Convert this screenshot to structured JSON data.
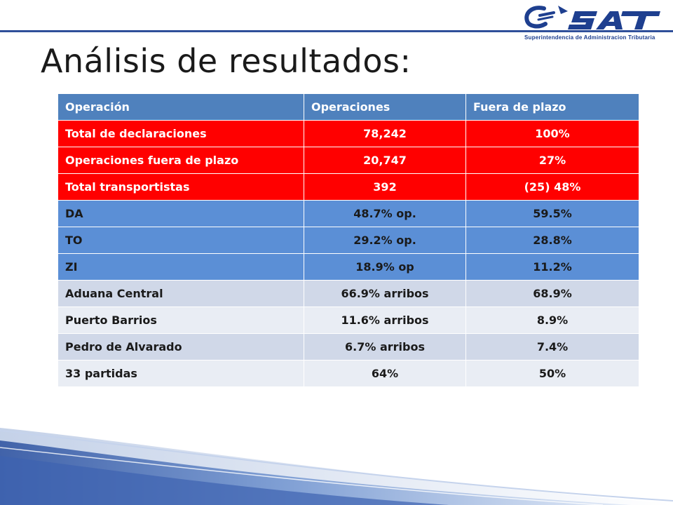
{
  "logo": {
    "mark": "SAT",
    "subtitle": "Superintendencia de Administracion Tributaria"
  },
  "title": "Análisis de resultados:",
  "table": {
    "headers": [
      "Operación",
      "Operaciones",
      "Fuera de plazo"
    ],
    "rows": [
      {
        "style": "red",
        "cells": [
          "Total de declaraciones",
          "78,242",
          "100%"
        ]
      },
      {
        "style": "red",
        "cells": [
          "Operaciones fuera de plazo",
          "20,747",
          "27%"
        ]
      },
      {
        "style": "red",
        "cells": [
          "Total transportistas",
          "392",
          "(25) 48%"
        ]
      },
      {
        "style": "blue",
        "cells": [
          "DA",
          "48.7% op.",
          "59.5%"
        ]
      },
      {
        "style": "blue",
        "cells": [
          "TO",
          "29.2% op.",
          "28.8%"
        ]
      },
      {
        "style": "blue",
        "cells": [
          "ZI",
          "18.9% op",
          "11.2%"
        ]
      },
      {
        "style": "gray",
        "cells": [
          "Aduana Central",
          "66.9% arribos",
          "68.9%"
        ]
      },
      {
        "style": "light",
        "cells": [
          "Puerto Barrios",
          "11.6% arribos",
          "8.9%"
        ]
      },
      {
        "style": "gray",
        "cells": [
          "Pedro de Alvarado",
          "6.7% arribos",
          "7.4%"
        ]
      },
      {
        "style": "light",
        "cells": [
          "33 partidas",
          "64%",
          "50%"
        ]
      }
    ]
  },
  "colors": {
    "header": "#4f81bd",
    "red_rows": "#ff0000",
    "blue_rows": "#5b8fd6",
    "brand": "#1e3f8f"
  }
}
